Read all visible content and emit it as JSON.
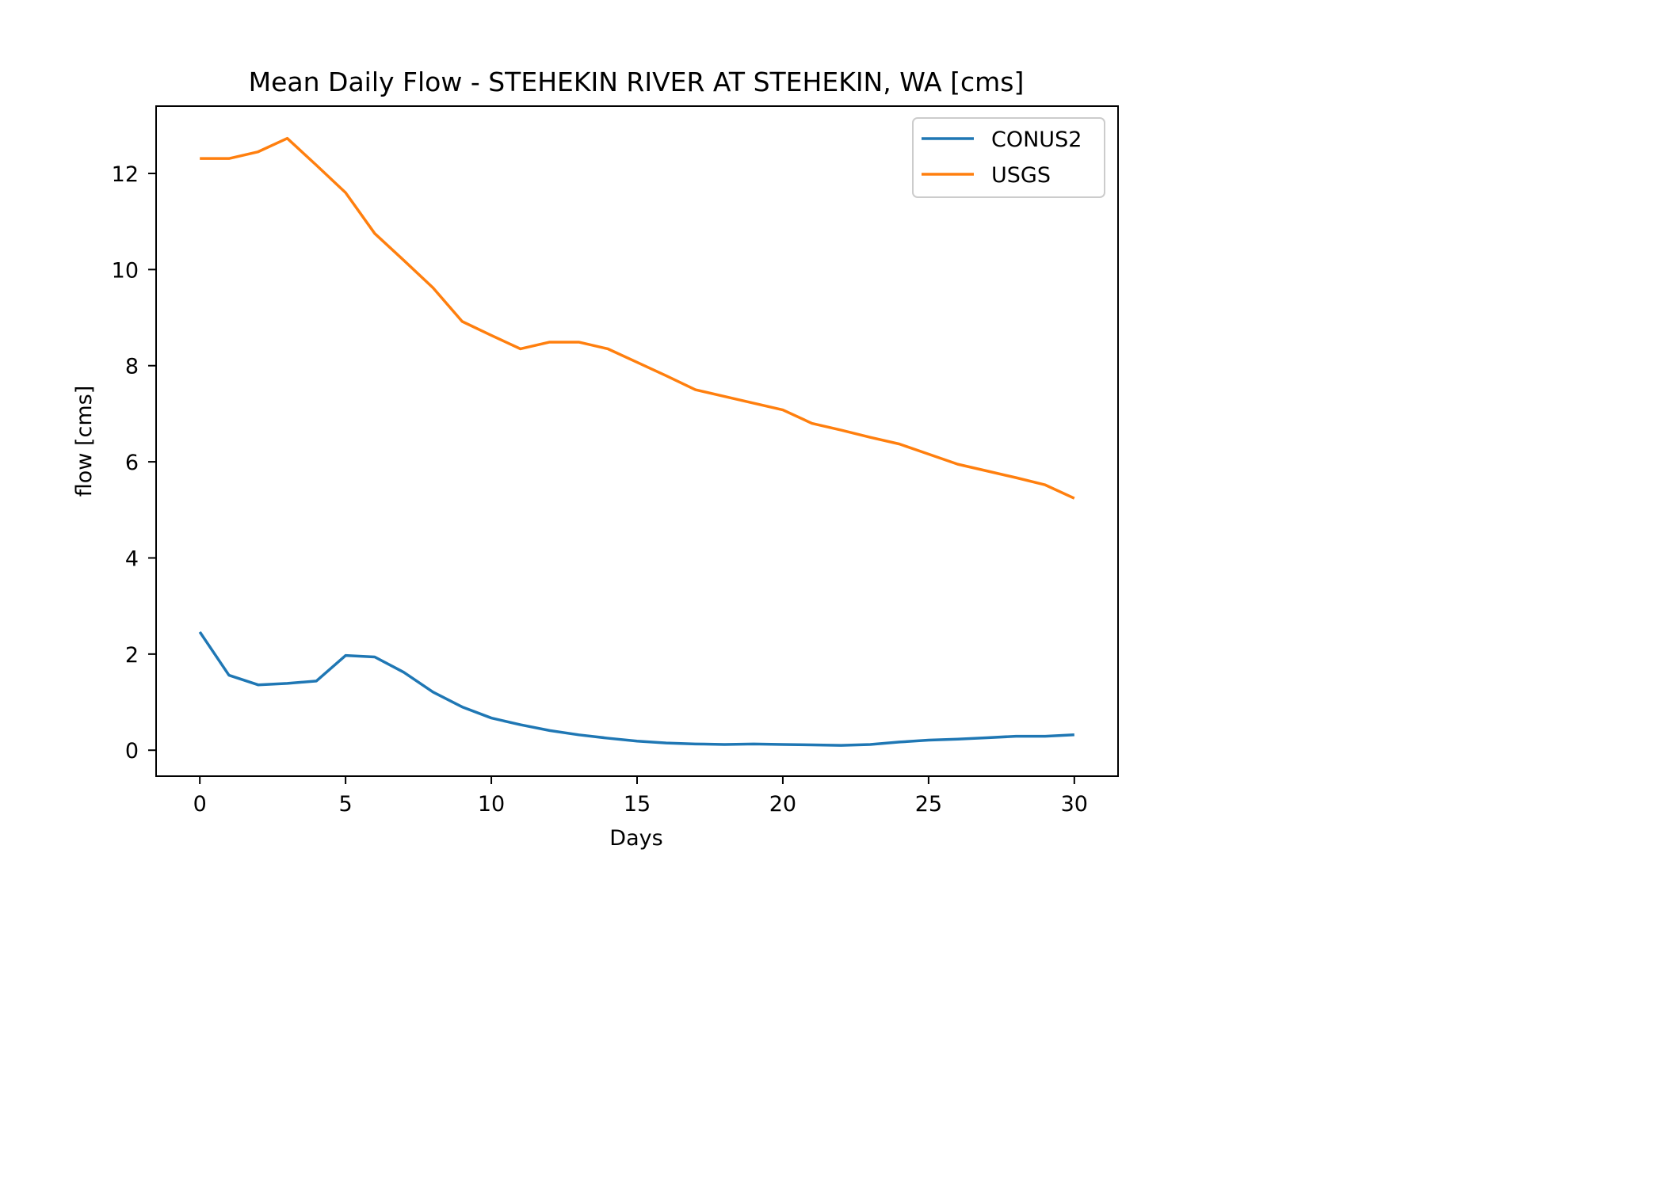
{
  "chart_data": {
    "type": "line",
    "title": "Mean Daily Flow - STEHEKIN RIVER AT STEHEKIN, WA [cms]",
    "xlabel": "Days",
    "ylabel": "flow [cms]",
    "xlim": [
      -1.5,
      31.5
    ],
    "ylim": [
      -0.54,
      13.4
    ],
    "xticks": [
      0,
      5,
      10,
      15,
      20,
      25,
      30
    ],
    "yticks": [
      0,
      2,
      4,
      6,
      8,
      10,
      12
    ],
    "grid": false,
    "legend_position": "top-right",
    "x": [
      0,
      1,
      2,
      3,
      4,
      5,
      6,
      7,
      8,
      9,
      10,
      11,
      12,
      13,
      14,
      15,
      16,
      17,
      18,
      19,
      20,
      21,
      22,
      23,
      24,
      25,
      26,
      27,
      28,
      29,
      30
    ],
    "series": [
      {
        "name": "CONUS2",
        "color": "#1f77b4",
        "values": [
          2.46,
          1.56,
          1.36,
          1.39,
          1.44,
          1.97,
          1.94,
          1.62,
          1.21,
          0.9,
          0.67,
          0.53,
          0.41,
          0.32,
          0.25,
          0.19,
          0.15,
          0.13,
          0.12,
          0.13,
          0.12,
          0.11,
          0.1,
          0.12,
          0.17,
          0.21,
          0.23,
          0.26,
          0.29,
          0.29,
          0.32
        ]
      },
      {
        "name": "USGS",
        "color": "#ff7f0e",
        "values": [
          12.31,
          12.31,
          12.45,
          12.73,
          12.17,
          11.6,
          10.75,
          10.19,
          9.62,
          8.92,
          8.63,
          8.35,
          8.49,
          8.49,
          8.35,
          8.07,
          7.79,
          7.5,
          7.36,
          7.22,
          7.08,
          6.8,
          6.66,
          6.51,
          6.37,
          6.16,
          5.95,
          5.81,
          5.67,
          5.52,
          5.24
        ]
      }
    ]
  }
}
